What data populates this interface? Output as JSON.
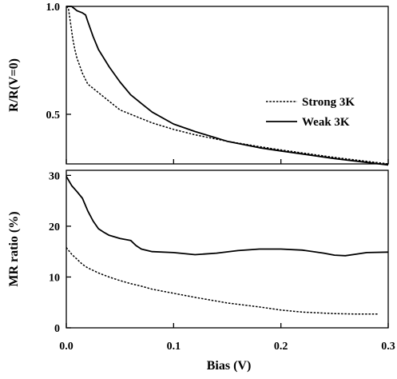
{
  "chart_data": [
    {
      "type": "line",
      "panel": "top",
      "xlabel": "",
      "ylabel": "R/R(V=0)",
      "xlim": [
        0.0,
        0.3
      ],
      "ylim": [
        0.27,
        1.0
      ],
      "yticks": [
        1.0,
        0.5
      ],
      "ytick_labels": [
        "1.0",
        "0.5"
      ],
      "xticks": [
        0.0,
        0.1,
        0.2,
        0.3
      ],
      "xtick_labels": [],
      "grid": false,
      "legend_position": "center-right",
      "series": [
        {
          "name": "Strong 3K",
          "style": "dashed",
          "x": [
            0.0,
            0.002,
            0.004,
            0.006,
            0.008,
            0.01,
            0.015,
            0.02,
            0.025,
            0.03,
            0.04,
            0.05,
            0.06,
            0.07,
            0.08,
            0.1,
            0.12,
            0.15,
            0.18,
            0.2,
            0.25,
            0.3
          ],
          "y": [
            1.0,
            0.99,
            0.92,
            0.85,
            0.8,
            0.76,
            0.69,
            0.64,
            0.62,
            0.6,
            0.56,
            0.52,
            0.5,
            0.48,
            0.46,
            0.43,
            0.405,
            0.375,
            0.35,
            0.335,
            0.3,
            0.27
          ]
        },
        {
          "name": "Weak 3K",
          "style": "solid",
          "x": [
            0.0,
            0.005,
            0.01,
            0.015,
            0.018,
            0.02,
            0.025,
            0.03,
            0.04,
            0.05,
            0.06,
            0.07,
            0.08,
            0.1,
            0.12,
            0.15,
            0.18,
            0.2,
            0.25,
            0.3
          ],
          "y": [
            1.0,
            1.0,
            0.98,
            0.97,
            0.96,
            0.93,
            0.86,
            0.8,
            0.72,
            0.65,
            0.59,
            0.55,
            0.51,
            0.455,
            0.42,
            0.375,
            0.345,
            0.33,
            0.295,
            0.265
          ]
        }
      ]
    },
    {
      "type": "line",
      "panel": "bottom",
      "xlabel": "Bias (V)",
      "ylabel": "MR ratio (%)",
      "xlim": [
        0.0,
        0.3
      ],
      "ylim": [
        0,
        31
      ],
      "yticks": [
        0,
        10,
        20,
        30
      ],
      "ytick_labels": [
        "0",
        "10",
        "20",
        "30"
      ],
      "xticks": [
        0.0,
        0.1,
        0.2,
        0.3
      ],
      "xtick_labels": [
        "0.0",
        "0.1",
        "0.2",
        "0.3"
      ],
      "grid": false,
      "series": [
        {
          "name": "Strong 3K",
          "style": "dashed",
          "x": [
            0.0,
            0.005,
            0.01,
            0.015,
            0.02,
            0.03,
            0.04,
            0.05,
            0.06,
            0.07,
            0.08,
            0.1,
            0.12,
            0.15,
            0.18,
            0.2,
            0.22,
            0.25,
            0.27,
            0.29
          ],
          "y": [
            15.8,
            14.5,
            13.5,
            12.5,
            11.8,
            10.8,
            10.0,
            9.3,
            8.7,
            8.2,
            7.6,
            6.8,
            6.0,
            4.9,
            4.1,
            3.5,
            3.1,
            2.8,
            2.7,
            2.7
          ]
        },
        {
          "name": "Weak 3K",
          "style": "solid",
          "x": [
            0.0,
            0.005,
            0.01,
            0.015,
            0.02,
            0.025,
            0.03,
            0.035,
            0.04,
            0.05,
            0.06,
            0.065,
            0.07,
            0.08,
            0.1,
            0.12,
            0.14,
            0.16,
            0.18,
            0.2,
            0.22,
            0.24,
            0.25,
            0.26,
            0.27,
            0.28,
            0.3
          ],
          "y": [
            29.8,
            28.0,
            26.8,
            25.5,
            23.0,
            21.0,
            19.5,
            18.8,
            18.2,
            17.6,
            17.2,
            16.2,
            15.5,
            15.0,
            14.8,
            14.4,
            14.7,
            15.2,
            15.5,
            15.5,
            15.3,
            14.7,
            14.3,
            14.2,
            14.5,
            14.8,
            14.9
          ]
        }
      ]
    }
  ]
}
